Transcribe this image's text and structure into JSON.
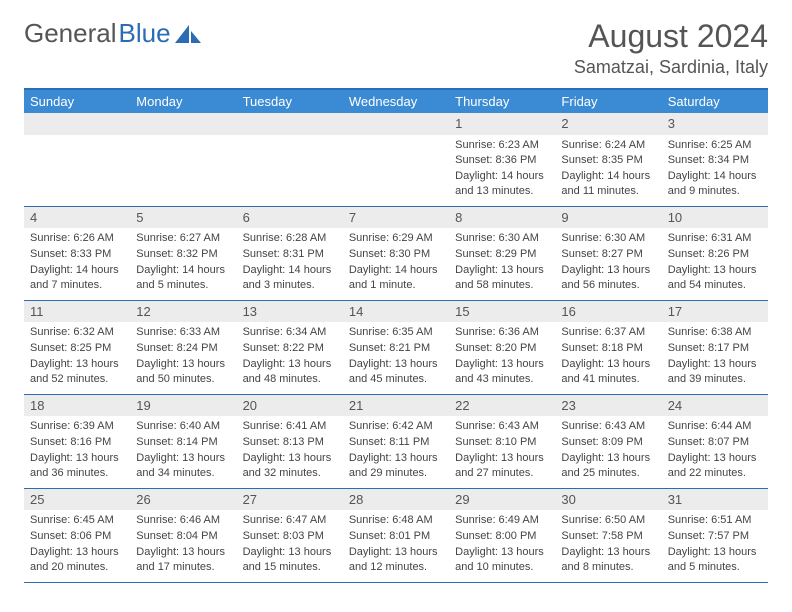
{
  "logo": {
    "text1": "General",
    "text2": "Blue"
  },
  "title": "August 2024",
  "location": "Samatzai, Sardinia, Italy",
  "colors": {
    "header_bg": "#3b8bd4",
    "border": "#2a6db5",
    "daynum_bg": "#ececec",
    "text": "#555555"
  },
  "days_of_week": [
    "Sunday",
    "Monday",
    "Tuesday",
    "Wednesday",
    "Thursday",
    "Friday",
    "Saturday"
  ],
  "weeks": [
    [
      {
        "n": "",
        "sr": "",
        "ss": "",
        "dl": ""
      },
      {
        "n": "",
        "sr": "",
        "ss": "",
        "dl": ""
      },
      {
        "n": "",
        "sr": "",
        "ss": "",
        "dl": ""
      },
      {
        "n": "",
        "sr": "",
        "ss": "",
        "dl": ""
      },
      {
        "n": "1",
        "sr": "Sunrise: 6:23 AM",
        "ss": "Sunset: 8:36 PM",
        "dl": "Daylight: 14 hours and 13 minutes."
      },
      {
        "n": "2",
        "sr": "Sunrise: 6:24 AM",
        "ss": "Sunset: 8:35 PM",
        "dl": "Daylight: 14 hours and 11 minutes."
      },
      {
        "n": "3",
        "sr": "Sunrise: 6:25 AM",
        "ss": "Sunset: 8:34 PM",
        "dl": "Daylight: 14 hours and 9 minutes."
      }
    ],
    [
      {
        "n": "4",
        "sr": "Sunrise: 6:26 AM",
        "ss": "Sunset: 8:33 PM",
        "dl": "Daylight: 14 hours and 7 minutes."
      },
      {
        "n": "5",
        "sr": "Sunrise: 6:27 AM",
        "ss": "Sunset: 8:32 PM",
        "dl": "Daylight: 14 hours and 5 minutes."
      },
      {
        "n": "6",
        "sr": "Sunrise: 6:28 AM",
        "ss": "Sunset: 8:31 PM",
        "dl": "Daylight: 14 hours and 3 minutes."
      },
      {
        "n": "7",
        "sr": "Sunrise: 6:29 AM",
        "ss": "Sunset: 8:30 PM",
        "dl": "Daylight: 14 hours and 1 minute."
      },
      {
        "n": "8",
        "sr": "Sunrise: 6:30 AM",
        "ss": "Sunset: 8:29 PM",
        "dl": "Daylight: 13 hours and 58 minutes."
      },
      {
        "n": "9",
        "sr": "Sunrise: 6:30 AM",
        "ss": "Sunset: 8:27 PM",
        "dl": "Daylight: 13 hours and 56 minutes."
      },
      {
        "n": "10",
        "sr": "Sunrise: 6:31 AM",
        "ss": "Sunset: 8:26 PM",
        "dl": "Daylight: 13 hours and 54 minutes."
      }
    ],
    [
      {
        "n": "11",
        "sr": "Sunrise: 6:32 AM",
        "ss": "Sunset: 8:25 PM",
        "dl": "Daylight: 13 hours and 52 minutes."
      },
      {
        "n": "12",
        "sr": "Sunrise: 6:33 AM",
        "ss": "Sunset: 8:24 PM",
        "dl": "Daylight: 13 hours and 50 minutes."
      },
      {
        "n": "13",
        "sr": "Sunrise: 6:34 AM",
        "ss": "Sunset: 8:22 PM",
        "dl": "Daylight: 13 hours and 48 minutes."
      },
      {
        "n": "14",
        "sr": "Sunrise: 6:35 AM",
        "ss": "Sunset: 8:21 PM",
        "dl": "Daylight: 13 hours and 45 minutes."
      },
      {
        "n": "15",
        "sr": "Sunrise: 6:36 AM",
        "ss": "Sunset: 8:20 PM",
        "dl": "Daylight: 13 hours and 43 minutes."
      },
      {
        "n": "16",
        "sr": "Sunrise: 6:37 AM",
        "ss": "Sunset: 8:18 PM",
        "dl": "Daylight: 13 hours and 41 minutes."
      },
      {
        "n": "17",
        "sr": "Sunrise: 6:38 AM",
        "ss": "Sunset: 8:17 PM",
        "dl": "Daylight: 13 hours and 39 minutes."
      }
    ],
    [
      {
        "n": "18",
        "sr": "Sunrise: 6:39 AM",
        "ss": "Sunset: 8:16 PM",
        "dl": "Daylight: 13 hours and 36 minutes."
      },
      {
        "n": "19",
        "sr": "Sunrise: 6:40 AM",
        "ss": "Sunset: 8:14 PM",
        "dl": "Daylight: 13 hours and 34 minutes."
      },
      {
        "n": "20",
        "sr": "Sunrise: 6:41 AM",
        "ss": "Sunset: 8:13 PM",
        "dl": "Daylight: 13 hours and 32 minutes."
      },
      {
        "n": "21",
        "sr": "Sunrise: 6:42 AM",
        "ss": "Sunset: 8:11 PM",
        "dl": "Daylight: 13 hours and 29 minutes."
      },
      {
        "n": "22",
        "sr": "Sunrise: 6:43 AM",
        "ss": "Sunset: 8:10 PM",
        "dl": "Daylight: 13 hours and 27 minutes."
      },
      {
        "n": "23",
        "sr": "Sunrise: 6:43 AM",
        "ss": "Sunset: 8:09 PM",
        "dl": "Daylight: 13 hours and 25 minutes."
      },
      {
        "n": "24",
        "sr": "Sunrise: 6:44 AM",
        "ss": "Sunset: 8:07 PM",
        "dl": "Daylight: 13 hours and 22 minutes."
      }
    ],
    [
      {
        "n": "25",
        "sr": "Sunrise: 6:45 AM",
        "ss": "Sunset: 8:06 PM",
        "dl": "Daylight: 13 hours and 20 minutes."
      },
      {
        "n": "26",
        "sr": "Sunrise: 6:46 AM",
        "ss": "Sunset: 8:04 PM",
        "dl": "Daylight: 13 hours and 17 minutes."
      },
      {
        "n": "27",
        "sr": "Sunrise: 6:47 AM",
        "ss": "Sunset: 8:03 PM",
        "dl": "Daylight: 13 hours and 15 minutes."
      },
      {
        "n": "28",
        "sr": "Sunrise: 6:48 AM",
        "ss": "Sunset: 8:01 PM",
        "dl": "Daylight: 13 hours and 12 minutes."
      },
      {
        "n": "29",
        "sr": "Sunrise: 6:49 AM",
        "ss": "Sunset: 8:00 PM",
        "dl": "Daylight: 13 hours and 10 minutes."
      },
      {
        "n": "30",
        "sr": "Sunrise: 6:50 AM",
        "ss": "Sunset: 7:58 PM",
        "dl": "Daylight: 13 hours and 8 minutes."
      },
      {
        "n": "31",
        "sr": "Sunrise: 6:51 AM",
        "ss": "Sunset: 7:57 PM",
        "dl": "Daylight: 13 hours and 5 minutes."
      }
    ]
  ]
}
